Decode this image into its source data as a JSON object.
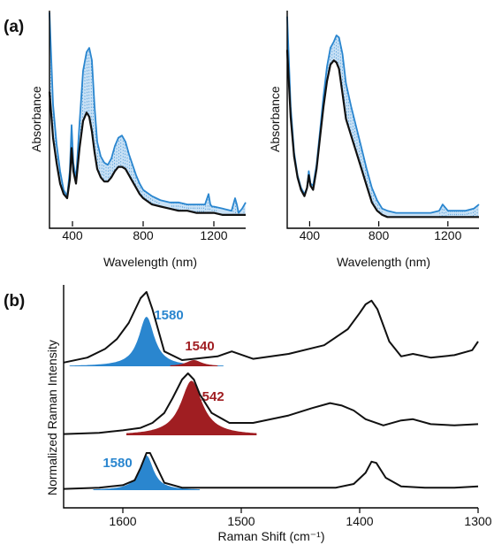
{
  "figure": {
    "panel_labels": [
      "(a)",
      "(b)"
    ]
  },
  "colors": {
    "black": "#111111",
    "blue": "#2a86cf",
    "blue_fill": "#9cc9ec",
    "red": "#a01e22"
  },
  "chart_data": [
    {
      "type": "line",
      "panel": "(a) left",
      "xlabel": "Wavelength (nm)",
      "ylabel": "Absorbance",
      "xlim": [
        270,
        1380
      ],
      "xticks": [
        400,
        800,
        1200
      ],
      "y_ticks_shown": false,
      "shaded_between_series": true,
      "series": [
        {
          "color": "#2a86cf",
          "x": [
            270,
            290,
            310,
            330,
            350,
            370,
            385,
            395,
            405,
            420,
            440,
            460,
            480,
            495,
            510,
            525,
            540,
            560,
            580,
            600,
            620,
            640,
            660,
            680,
            700,
            720,
            740,
            760,
            780,
            800,
            850,
            900,
            950,
            1000,
            1050,
            1100,
            1150,
            1170,
            1180,
            1190,
            1200,
            1250,
            1300,
            1320,
            1330,
            1340,
            1360,
            1380
          ],
          "y": [
            1.0,
            0.56,
            0.37,
            0.24,
            0.15,
            0.12,
            0.24,
            0.46,
            0.28,
            0.2,
            0.47,
            0.72,
            0.81,
            0.83,
            0.77,
            0.55,
            0.38,
            0.31,
            0.28,
            0.27,
            0.3,
            0.36,
            0.4,
            0.41,
            0.38,
            0.32,
            0.27,
            0.22,
            0.18,
            0.15,
            0.12,
            0.1,
            0.09,
            0.09,
            0.08,
            0.08,
            0.08,
            0.13,
            0.08,
            0.07,
            0.07,
            0.06,
            0.05,
            0.11,
            0.08,
            0.04,
            0.06,
            0.09
          ]
        },
        {
          "color": "#111111",
          "x": [
            270,
            290,
            310,
            330,
            350,
            370,
            385,
            395,
            405,
            420,
            440,
            460,
            480,
            495,
            510,
            525,
            540,
            560,
            580,
            600,
            620,
            640,
            660,
            680,
            700,
            720,
            740,
            760,
            780,
            800,
            850,
            900,
            950,
            1000,
            1050,
            1100,
            1150,
            1200,
            1250,
            1300,
            1340,
            1380
          ],
          "y": [
            0.62,
            0.4,
            0.28,
            0.18,
            0.13,
            0.11,
            0.2,
            0.35,
            0.24,
            0.18,
            0.35,
            0.48,
            0.52,
            0.5,
            0.43,
            0.33,
            0.25,
            0.21,
            0.19,
            0.19,
            0.21,
            0.24,
            0.26,
            0.26,
            0.25,
            0.22,
            0.19,
            0.16,
            0.13,
            0.11,
            0.08,
            0.07,
            0.06,
            0.05,
            0.05,
            0.04,
            0.04,
            0.04,
            0.03,
            0.03,
            0.03,
            0.03
          ]
        }
      ]
    },
    {
      "type": "line",
      "panel": "(a) right",
      "xlabel": "Wavelength (nm)",
      "ylabel": "Absorbance",
      "xlim": [
        270,
        1380
      ],
      "xticks": [
        400,
        800,
        1200
      ],
      "y_ticks_shown": false,
      "shaded_between_series": true,
      "series": [
        {
          "color": "#2a86cf",
          "x": [
            270,
            290,
            310,
            330,
            350,
            370,
            385,
            395,
            405,
            420,
            440,
            460,
            480,
            500,
            520,
            540,
            555,
            570,
            590,
            610,
            640,
            670,
            700,
            730,
            760,
            790,
            820,
            850,
            900,
            950,
            1000,
            1050,
            1100,
            1150,
            1170,
            1190,
            1200,
            1250,
            1300,
            1350,
            1380
          ],
          "y": [
            0.98,
            0.55,
            0.33,
            0.22,
            0.16,
            0.13,
            0.16,
            0.24,
            0.18,
            0.17,
            0.27,
            0.43,
            0.6,
            0.74,
            0.83,
            0.86,
            0.89,
            0.88,
            0.8,
            0.66,
            0.55,
            0.45,
            0.35,
            0.25,
            0.16,
            0.1,
            0.06,
            0.05,
            0.04,
            0.04,
            0.04,
            0.04,
            0.04,
            0.05,
            0.08,
            0.06,
            0.05,
            0.05,
            0.05,
            0.06,
            0.08
          ]
        },
        {
          "color": "#111111",
          "x": [
            270,
            290,
            310,
            330,
            350,
            370,
            385,
            395,
            405,
            420,
            440,
            460,
            480,
            500,
            520,
            540,
            555,
            570,
            590,
            610,
            640,
            670,
            700,
            730,
            760,
            790,
            820,
            850,
            900,
            950,
            1000,
            1100,
            1200,
            1300,
            1380
          ],
          "y": [
            0.82,
            0.5,
            0.31,
            0.21,
            0.15,
            0.12,
            0.16,
            0.22,
            0.17,
            0.15,
            0.25,
            0.4,
            0.55,
            0.67,
            0.75,
            0.77,
            0.76,
            0.73,
            0.61,
            0.49,
            0.41,
            0.33,
            0.25,
            0.17,
            0.09,
            0.05,
            0.03,
            0.02,
            0.02,
            0.02,
            0.02,
            0.02,
            0.02,
            0.02,
            0.02
          ]
        }
      ]
    },
    {
      "type": "line",
      "panel": "(b)",
      "xlabel": "Raman Shift (cm⁻¹)",
      "ylabel": "Normalized Raman Intensity",
      "xlim": [
        1650,
        1300
      ],
      "xticks": [
        1600,
        1500,
        1400,
        1300
      ],
      "y_ticks_shown": false,
      "traces": [
        {
          "color": "#111111",
          "x": [
            1650,
            1630,
            1615,
            1605,
            1595,
            1585,
            1580,
            1575,
            1565,
            1550,
            1540,
            1520,
            1508,
            1490,
            1460,
            1430,
            1410,
            1400,
            1395,
            1390,
            1385,
            1375,
            1365,
            1355,
            1340,
            1320,
            1305,
            1300
          ],
          "y": [
            0.03,
            0.07,
            0.14,
            0.22,
            0.35,
            0.55,
            0.6,
            0.46,
            0.12,
            0.05,
            0.06,
            0.08,
            0.12,
            0.06,
            0.1,
            0.17,
            0.3,
            0.43,
            0.5,
            0.53,
            0.46,
            0.2,
            0.08,
            0.1,
            0.07,
            0.09,
            0.13,
            0.2
          ]
        },
        {
          "color": "#111111",
          "x": [
            1650,
            1620,
            1600,
            1585,
            1575,
            1565,
            1558,
            1550,
            1545,
            1540,
            1535,
            1525,
            1510,
            1490,
            1460,
            1440,
            1425,
            1415,
            1405,
            1395,
            1380,
            1365,
            1355,
            1340,
            1320,
            1300
          ],
          "y": [
            0.01,
            0.02,
            0.04,
            0.06,
            0.1,
            0.18,
            0.3,
            0.45,
            0.5,
            0.45,
            0.33,
            0.18,
            0.1,
            0.1,
            0.16,
            0.22,
            0.26,
            0.24,
            0.2,
            0.13,
            0.08,
            0.12,
            0.13,
            0.09,
            0.08,
            0.09
          ]
        },
        {
          "color": "#111111",
          "x": [
            1650,
            1620,
            1600,
            1590,
            1585,
            1580,
            1577,
            1572,
            1565,
            1550,
            1520,
            1490,
            1450,
            1420,
            1405,
            1395,
            1390,
            1386,
            1378,
            1365,
            1345,
            1320,
            1300
          ],
          "y": [
            0.01,
            0.02,
            0.04,
            0.08,
            0.18,
            0.3,
            0.3,
            0.2,
            0.06,
            0.02,
            0.02,
            0.02,
            0.02,
            0.02,
            0.05,
            0.14,
            0.23,
            0.22,
            0.1,
            0.03,
            0.02,
            0.02,
            0.03
          ]
        }
      ],
      "filled_peaks": [
        {
          "label": "1580",
          "center": 1580,
          "color": "#2a86cf",
          "trace": 1
        },
        {
          "label": "1540",
          "center": 1540,
          "color": "#a01e22",
          "trace": 1
        },
        {
          "label": "1542",
          "center": 1542,
          "color": "#a01e22",
          "trace": 2
        },
        {
          "label": "1580",
          "center": 1580,
          "color": "#2a86cf",
          "trace": 3
        }
      ]
    }
  ]
}
